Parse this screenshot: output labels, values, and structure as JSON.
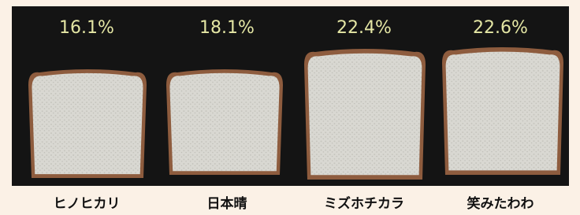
{
  "items": [
    {
      "percent": "16.1%",
      "label": "ヒノヒカリ"
    },
    {
      "percent": "18.1%",
      "label": "日本晴"
    },
    {
      "percent": "22.4%",
      "label": "ミズホチカラ"
    },
    {
      "percent": "22.6%",
      "label": "笑みたわわ"
    }
  ]
}
